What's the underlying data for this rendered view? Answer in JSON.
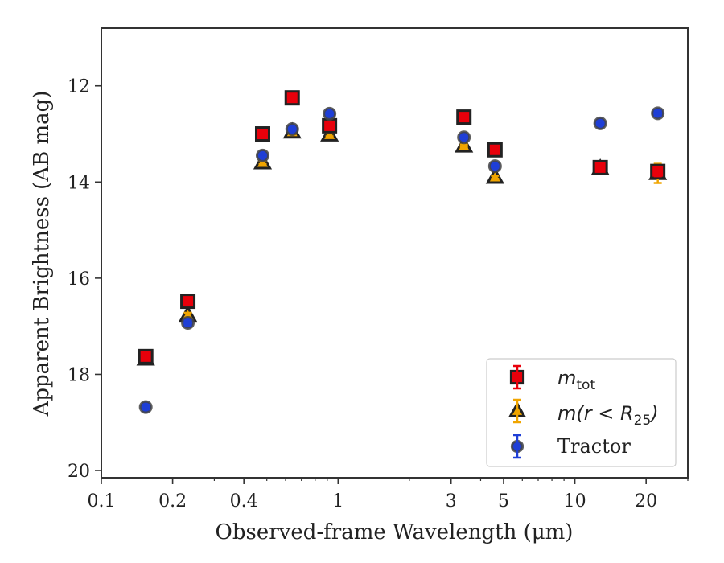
{
  "chart_data": {
    "type": "scatter",
    "xlabel": "Observed-frame Wavelength (μm)",
    "ylabel": "Apparent Brightness (AB mag)",
    "xscale": "log",
    "xlim": [
      0.1,
      30
    ],
    "ylim": [
      20.15,
      10.8
    ],
    "y_inverted": true,
    "xticks": [
      {
        "value": 0.1,
        "label": "0.1"
      },
      {
        "value": 0.2,
        "label": "0.2"
      },
      {
        "value": 0.4,
        "label": "0.4"
      },
      {
        "value": 1,
        "label": "1"
      },
      {
        "value": 3,
        "label": "3"
      },
      {
        "value": 5,
        "label": "5"
      },
      {
        "value": 10,
        "label": "10"
      },
      {
        "value": 20,
        "label": "20"
      }
    ],
    "yticks": [
      {
        "value": 12,
        "label": "12"
      },
      {
        "value": 14,
        "label": "14"
      },
      {
        "value": 16,
        "label": "16"
      },
      {
        "value": 18,
        "label": "18"
      },
      {
        "value": 20,
        "label": "20"
      }
    ],
    "grid": false,
    "legend_position": "lower-right",
    "series": [
      {
        "name": "m_tot",
        "legend_main": "m",
        "legend_sub": "tot",
        "marker": "square",
        "color": "#e8000b",
        "error_color": "#e8000b",
        "points": [
          {
            "x": 0.154,
            "y": 17.63,
            "err": 0.08
          },
          {
            "x": 0.232,
            "y": 16.48,
            "err": 0.05
          },
          {
            "x": 0.48,
            "y": 13.0,
            "err": 0.03
          },
          {
            "x": 0.64,
            "y": 12.25,
            "err": 0.03
          },
          {
            "x": 0.92,
            "y": 12.83,
            "err": 0.03
          },
          {
            "x": 3.4,
            "y": 12.65,
            "err": 0.03
          },
          {
            "x": 4.6,
            "y": 13.33,
            "err": 0.03
          },
          {
            "x": 12.8,
            "y": 13.7,
            "err": 0.05
          },
          {
            "x": 22.4,
            "y": 13.78,
            "err": 0.1
          }
        ]
      },
      {
        "name": "m(r < R25)",
        "legend_main": "m(r < R",
        "legend_sub": "25",
        "legend_tail": ")",
        "marker": "triangle",
        "color": "#f0a500",
        "error_color": "#f0a500",
        "points": [
          {
            "x": 0.154,
            "y": 17.68,
            "err": 0.08
          },
          {
            "x": 0.232,
            "y": 16.77,
            "err": 0.05
          },
          {
            "x": 0.48,
            "y": 13.6,
            "err": 0.03
          },
          {
            "x": 0.64,
            "y": 12.96,
            "err": 0.03
          },
          {
            "x": 0.92,
            "y": 13.02,
            "err": 0.03
          },
          {
            "x": 3.4,
            "y": 13.25,
            "err": 0.03
          },
          {
            "x": 4.6,
            "y": 13.9,
            "err": 0.03
          },
          {
            "x": 12.8,
            "y": 13.72,
            "err": 0.05
          },
          {
            "x": 22.4,
            "y": 13.82,
            "err": 0.2
          }
        ]
      },
      {
        "name": "Tractor",
        "legend_main": "Tractor",
        "marker": "circle",
        "color": "#1f3fd6",
        "error_color": "#1f3fd6",
        "points": [
          {
            "x": 0.154,
            "y": 18.68,
            "err": 0.05
          },
          {
            "x": 0.232,
            "y": 16.93,
            "err": 0.05
          },
          {
            "x": 0.48,
            "y": 13.45,
            "err": 0.03
          },
          {
            "x": 0.64,
            "y": 12.9,
            "err": 0.03
          },
          {
            "x": 0.92,
            "y": 12.58,
            "err": 0.03
          },
          {
            "x": 3.4,
            "y": 13.07,
            "err": 0.03
          },
          {
            "x": 4.6,
            "y": 13.67,
            "err": 0.03
          },
          {
            "x": 12.8,
            "y": 12.78,
            "err": 0.04
          },
          {
            "x": 22.4,
            "y": 12.57,
            "err": 0.05
          }
        ]
      }
    ]
  }
}
